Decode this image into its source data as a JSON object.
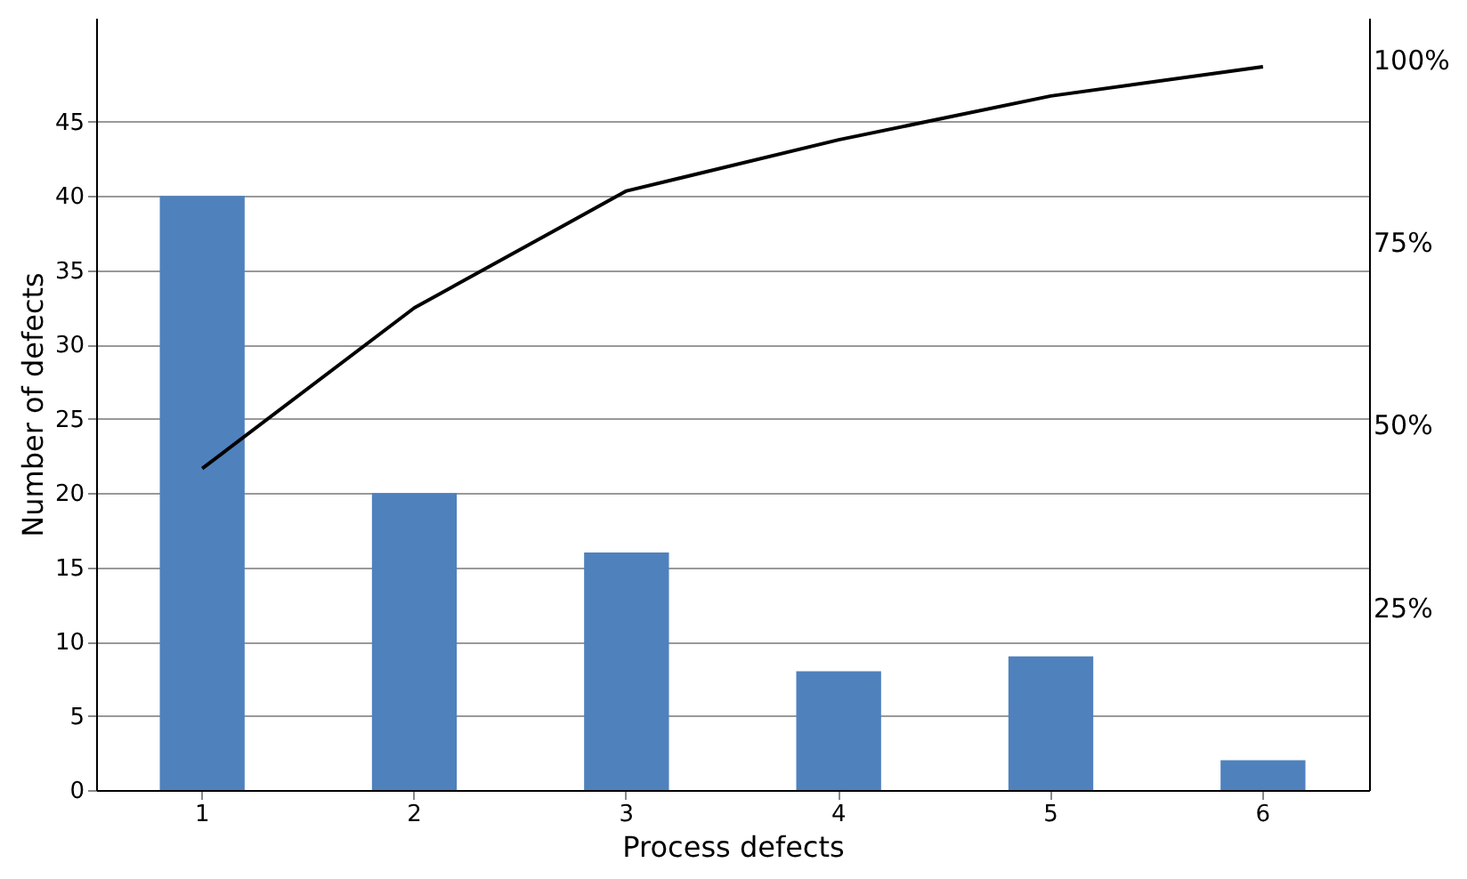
{
  "chart_data": {
    "type": "bar",
    "xlabel": "Process  defects",
    "ylabel": "Number of defects",
    "categories": [
      "1",
      "2",
      "3",
      "4",
      "5",
      "6"
    ],
    "series": [
      {
        "color": "#4f81bd",
        "values": [
          40,
          20,
          16,
          8,
          9,
          2
        ]
      },
      {
        "type": "line",
        "axis": "y2",
        "color": "#000000",
        "values": [
          44,
          66,
          82,
          89,
          95,
          99
        ]
      }
    ],
    "ylim": [
      0,
      52
    ],
    "yticks": [
      0,
      5,
      10,
      15,
      20,
      25,
      30,
      35,
      40,
      45
    ],
    "y2lim": [
      0,
      105.7
    ],
    "y2ticks": [
      {
        "value": 25,
        "label": "25%"
      },
      {
        "value": 50,
        "label": "50%"
      },
      {
        "value": 75,
        "label": "75%"
      },
      {
        "value": 100,
        "label": "100%"
      }
    ],
    "grid": "y",
    "marker": "none",
    "line_style": "solid"
  }
}
